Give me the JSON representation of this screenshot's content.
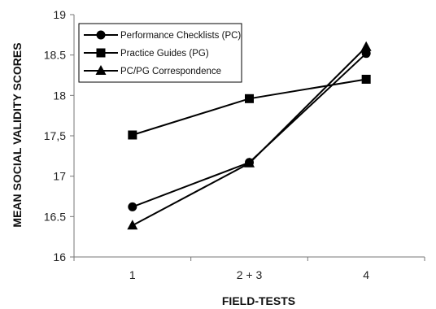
{
  "chart_data": {
    "type": "line",
    "categories": [
      "1",
      "2 + 3",
      "4"
    ],
    "xlabel": "FIELD-TESTS",
    "ylabel": "MEAN SOCIAL VALIDITY SCORES",
    "ylim": [
      16,
      19
    ],
    "yticks": [
      "16",
      "16.5",
      "17",
      "17,5",
      "18",
      "18.5",
      "19"
    ],
    "ytick_values": [
      16,
      16.5,
      17,
      17.5,
      18,
      18.5,
      19
    ],
    "grid": false,
    "legend": "top-left",
    "series": [
      {
        "name": "Performance Checklists (PC)",
        "marker": "circle",
        "values": [
          16.62,
          17.17,
          18.52
        ]
      },
      {
        "name": "Practice Guides (PG)",
        "marker": "square",
        "values": [
          17.51,
          17.96,
          18.2
        ]
      },
      {
        "name": "PC/PG Correspondence",
        "marker": "triangle",
        "values": [
          16.39,
          17.16,
          18.6
        ]
      }
    ],
    "colors": {
      "line": "#000000",
      "axis": "#777777"
    }
  }
}
